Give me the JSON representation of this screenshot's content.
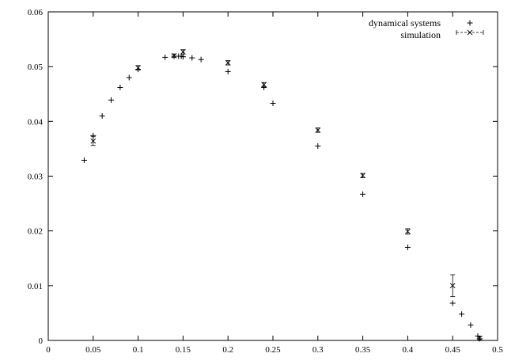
{
  "chart_data": {
    "type": "scatter",
    "title": "",
    "xlabel": "",
    "ylabel": "",
    "xlim": [
      0,
      0.5
    ],
    "ylim": [
      0,
      0.06
    ],
    "x_ticks": [
      "0",
      "0.05",
      "0.1",
      "0.15",
      "0.2",
      "0.25",
      "0.3",
      "0.35",
      "0.4",
      "0.45",
      "0.5"
    ],
    "y_ticks": [
      "0",
      "0.01",
      "0.02",
      "0.03",
      "0.04",
      "0.05",
      "0.06"
    ],
    "grid": false,
    "legend_position": "top-right",
    "series": [
      {
        "name": "dynamical systems",
        "marker": "plus",
        "x": [
          0.04,
          0.05,
          0.06,
          0.07,
          0.08,
          0.09,
          0.1,
          0.13,
          0.14,
          0.145,
          0.148,
          0.15,
          0.16,
          0.17,
          0.2,
          0.24,
          0.25,
          0.3,
          0.35,
          0.4,
          0.45,
          0.46,
          0.47,
          0.478,
          0.48
        ],
        "y": [
          0.0329,
          0.0374,
          0.041,
          0.0439,
          0.0462,
          0.048,
          0.0495,
          0.0517,
          0.0519,
          0.0519,
          0.0519,
          0.0518,
          0.0516,
          0.0513,
          0.0491,
          0.0462,
          0.0433,
          0.0355,
          0.0267,
          0.017,
          0.0068,
          0.0048,
          0.0028,
          0.0008,
          0.0003
        ]
      },
      {
        "name": "simulation",
        "marker": "x-errorbar",
        "x": [
          0.05,
          0.1,
          0.14,
          0.15,
          0.2,
          0.24,
          0.3,
          0.35,
          0.4,
          0.45,
          0.48
        ],
        "y": [
          0.0364,
          0.0498,
          0.052,
          0.0527,
          0.0507,
          0.0467,
          0.0384,
          0.0301,
          0.0199,
          0.01,
          0.0004
        ],
        "err": [
          0.0008,
          0.0004,
          0.0003,
          0.0004,
          0.0004,
          0.0004,
          0.0004,
          0.0004,
          0.0005,
          0.002,
          0.0003
        ]
      }
    ]
  }
}
